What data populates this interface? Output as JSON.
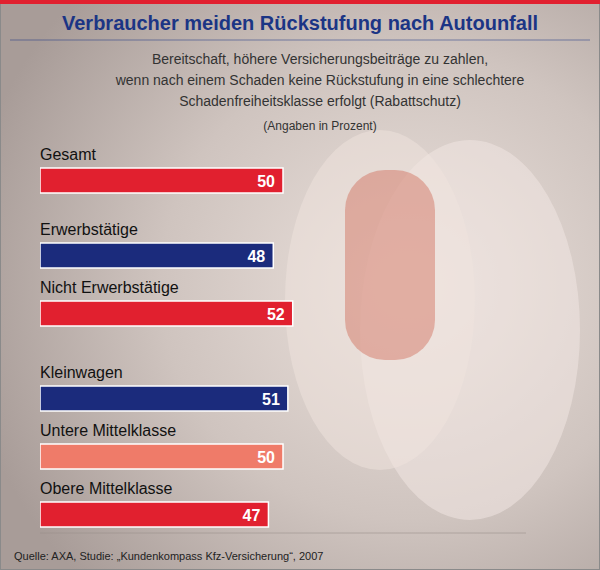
{
  "chart_data": {
    "type": "bar",
    "orientation": "horizontal",
    "title": "Verbraucher meiden Rückstufung nach Autounfall",
    "subtitle": [
      "Bereitschaft, höhere Versicherungsbeiträge zu zahlen,",
      "wenn nach einem Schaden keine Rückstufung in eine schlechtere",
      "Schadenfreiheitsklasse erfolgt (Rabattschutz)"
    ],
    "note": "(Angaben in Prozent)",
    "source": "Quelle: AXA, Studie: „Kundenkompass Kfz-Versicherung“, 2007",
    "categories": [
      "Gesamt",
      "Erwerbstätige",
      "Nicht Erwerbstätige",
      "Kleinwagen",
      "Untere Mittelklasse",
      "Obere Mittelklasse"
    ],
    "values": [
      50,
      48,
      52,
      51,
      50,
      47
    ],
    "colors": [
      "#e1202f",
      "#1b2b7c",
      "#e1202f",
      "#1b2b7c",
      "#ef7b69",
      "#e1202f"
    ],
    "xlim": [
      0,
      100
    ],
    "tick_labels": false,
    "grid": false,
    "data_labels": true
  }
}
